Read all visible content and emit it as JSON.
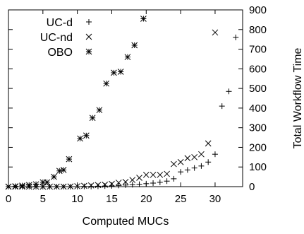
{
  "chart_data": {
    "type": "scatter",
    "xlabel": "Computed MUCs",
    "ylabel": "Total Workflow Time",
    "xlim": [
      0,
      34
    ],
    "ylim": [
      0,
      900
    ],
    "x_ticks": [
      "0",
      "5",
      "10",
      "15",
      "20",
      "25",
      "30"
    ],
    "x_tick_values": [
      0,
      5,
      10,
      15,
      20,
      25,
      30
    ],
    "y_ticks": [
      "0",
      "100",
      "200",
      "300",
      "400",
      "500",
      "600",
      "700",
      "800",
      "900"
    ],
    "y_tick_values": [
      0,
      100,
      200,
      300,
      400,
      500,
      600,
      700,
      800,
      900
    ],
    "y_axis_side": "right",
    "grid": false,
    "legend_position": "top-left",
    "series": [
      {
        "name": "UC-d",
        "marker": "plus",
        "points": [
          [
            0,
            0
          ],
          [
            1,
            0
          ],
          [
            2,
            0
          ],
          [
            3,
            0
          ],
          [
            4,
            0
          ],
          [
            5,
            0
          ],
          [
            6,
            0
          ],
          [
            7,
            0
          ],
          [
            8,
            0
          ],
          [
            9,
            0
          ],
          [
            10,
            0
          ],
          [
            11,
            1
          ],
          [
            12,
            1
          ],
          [
            13,
            2
          ],
          [
            14,
            3
          ],
          [
            15,
            4
          ],
          [
            16,
            6
          ],
          [
            17,
            8
          ],
          [
            18,
            10
          ],
          [
            19,
            12
          ],
          [
            20,
            15
          ],
          [
            21,
            18
          ],
          [
            22,
            22
          ],
          [
            23,
            28
          ],
          [
            24,
            40
          ],
          [
            25,
            75
          ],
          [
            26,
            85
          ],
          [
            27,
            95
          ],
          [
            28,
            105
          ],
          [
            29,
            125
          ],
          [
            30,
            165
          ],
          [
            31,
            410
          ],
          [
            32,
            485
          ],
          [
            33,
            760
          ]
        ]
      },
      {
        "name": "UC-nd",
        "marker": "cross",
        "points": [
          [
            0,
            0
          ],
          [
            1,
            0
          ],
          [
            2,
            0
          ],
          [
            3,
            0
          ],
          [
            4,
            0
          ],
          [
            5,
            0
          ],
          [
            6,
            0
          ],
          [
            7,
            0
          ],
          [
            8,
            0
          ],
          [
            9,
            1
          ],
          [
            10,
            2
          ],
          [
            11,
            4
          ],
          [
            12,
            6
          ],
          [
            13,
            8
          ],
          [
            14,
            10
          ],
          [
            15,
            14
          ],
          [
            16,
            20
          ],
          [
            17,
            24
          ],
          [
            18,
            34
          ],
          [
            19,
            45
          ],
          [
            20,
            60
          ],
          [
            21,
            60
          ],
          [
            22,
            60
          ],
          [
            23,
            65
          ],
          [
            24,
            115
          ],
          [
            25,
            125
          ],
          [
            26,
            145
          ],
          [
            27,
            150
          ],
          [
            28,
            165
          ],
          [
            29,
            220
          ],
          [
            30,
            785
          ]
        ]
      },
      {
        "name": "OBO",
        "marker": "star",
        "points": [
          [
            0,
            0
          ],
          [
            1,
            2
          ],
          [
            2,
            5
          ],
          [
            3,
            8
          ],
          [
            4,
            12
          ],
          [
            5,
            22
          ],
          [
            5.6,
            22
          ],
          [
            6.6,
            50
          ],
          [
            7.4,
            80
          ],
          [
            8,
            85
          ],
          [
            8.8,
            140
          ],
          [
            10.4,
            245
          ],
          [
            11.3,
            260
          ],
          [
            12.2,
            350
          ],
          [
            13.2,
            390
          ],
          [
            14.2,
            525
          ],
          [
            15.3,
            580
          ],
          [
            16.3,
            585
          ],
          [
            17.3,
            660
          ],
          [
            18.3,
            720
          ],
          [
            19.6,
            855
          ]
        ]
      }
    ]
  }
}
